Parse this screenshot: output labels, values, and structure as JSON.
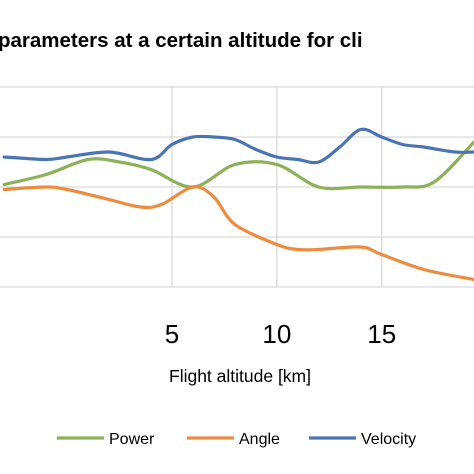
{
  "chart_data": {
    "type": "line",
    "title": "parameters at a certain altitude for cli",
    "xlabel": "Flight altitude [km]",
    "ylabel": "",
    "xlim": [
      -3.2,
      19.4
    ],
    "ylim": [
      0,
      4
    ],
    "x_ticks": [
      5,
      10,
      15
    ],
    "y_gridlines": [
      0,
      1,
      2,
      3,
      4
    ],
    "grid": true,
    "legend_position": "bottom",
    "series": [
      {
        "name": "Power",
        "color": "#8db159",
        "x": [
          -3,
          -1,
          1,
          2.5,
          4,
          6,
          8,
          10,
          12,
          14,
          16,
          17.5,
          19.4
        ],
        "y": [
          2.05,
          2.25,
          2.55,
          2.5,
          2.35,
          2.0,
          2.45,
          2.45,
          2.0,
          2.0,
          2.0,
          2.1,
          2.9
        ]
      },
      {
        "name": "Angle",
        "color": "#ed8b3e",
        "x": [
          -3,
          -1,
          0,
          2,
          3.5,
          4.5,
          6,
          7,
          8,
          10,
          11,
          12,
          14,
          15,
          17,
          19.4
        ],
        "y": [
          1.95,
          2.0,
          1.95,
          1.75,
          1.6,
          1.65,
          2.0,
          1.8,
          1.25,
          0.85,
          0.75,
          0.75,
          0.8,
          0.65,
          0.35,
          0.15
        ]
      },
      {
        "name": "Velocity",
        "color": "#4a74b4",
        "x": [
          -3,
          -1,
          0,
          2,
          4,
          5,
          6,
          7,
          8,
          9,
          10,
          11,
          12,
          13,
          14,
          15,
          16,
          17,
          18.5,
          19.4
        ],
        "y": [
          2.6,
          2.55,
          2.6,
          2.7,
          2.55,
          2.85,
          3.0,
          3.0,
          2.95,
          2.75,
          2.6,
          2.55,
          2.5,
          2.8,
          3.15,
          3.0,
          2.85,
          2.8,
          2.7,
          2.7
        ]
      }
    ]
  }
}
